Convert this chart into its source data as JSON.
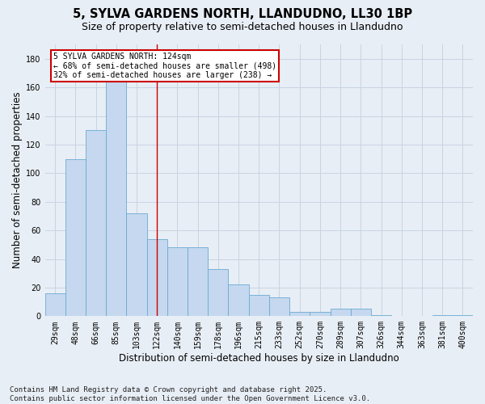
{
  "title1": "5, SYLVA GARDENS NORTH, LLANDUDNO, LL30 1BP",
  "title2": "Size of property relative to semi-detached houses in Llandudno",
  "xlabel": "Distribution of semi-detached houses by size in Llandudno",
  "ylabel": "Number of semi-detached properties",
  "categories": [
    "29sqm",
    "48sqm",
    "66sqm",
    "85sqm",
    "103sqm",
    "122sqm",
    "140sqm",
    "159sqm",
    "178sqm",
    "196sqm",
    "215sqm",
    "233sqm",
    "252sqm",
    "270sqm",
    "289sqm",
    "307sqm",
    "326sqm",
    "344sqm",
    "363sqm",
    "381sqm",
    "400sqm"
  ],
  "values": [
    16,
    110,
    130,
    165,
    72,
    54,
    48,
    48,
    33,
    22,
    15,
    13,
    3,
    3,
    5,
    5,
    1,
    0,
    0,
    1,
    1
  ],
  "bar_color": "#c5d8ef",
  "bar_edge_color": "#6aaad4",
  "highlight_index": 5,
  "highlight_line_color": "#cc0000",
  "annotation_title": "5 SYLVA GARDENS NORTH: 124sqm",
  "annotation_line1": "← 68% of semi-detached houses are smaller (498)",
  "annotation_line2": "32% of semi-detached houses are larger (238) →",
  "annotation_box_color": "#ffffff",
  "annotation_box_edge_color": "#cc0000",
  "grid_color": "#c8d4e3",
  "bg_color": "#e8eef5",
  "ylim": [
    0,
    190
  ],
  "yticks": [
    0,
    20,
    40,
    60,
    80,
    100,
    120,
    140,
    160,
    180
  ],
  "footer": "Contains HM Land Registry data © Crown copyright and database right 2025.\nContains public sector information licensed under the Open Government Licence v3.0.",
  "title_fontsize": 10.5,
  "subtitle_fontsize": 9,
  "axis_label_fontsize": 8.5,
  "tick_fontsize": 7,
  "footer_fontsize": 6.5
}
